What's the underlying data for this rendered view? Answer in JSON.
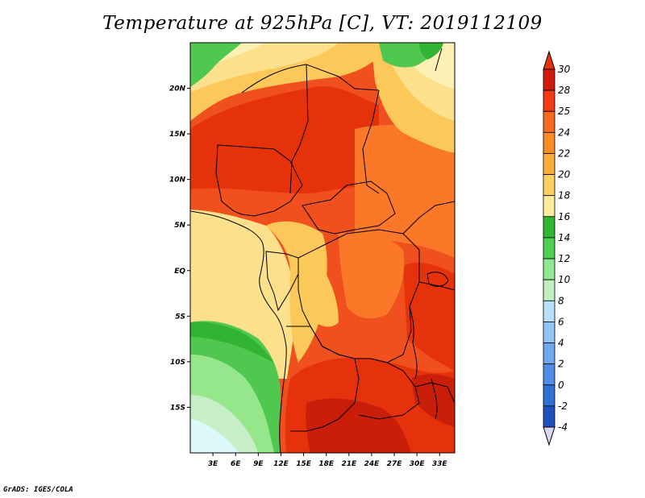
{
  "title": "Temperature at 925hPa [C], VT: 2019112109",
  "credit": "GrADS: IGES/COLA",
  "map": {
    "lat_range": [
      -20,
      25
    ],
    "lon_range": [
      0,
      35
    ],
    "lat_ticks": [
      {
        "value": 20,
        "label": "20N"
      },
      {
        "value": 15,
        "label": "15N"
      },
      {
        "value": 10,
        "label": "10N"
      },
      {
        "value": 5,
        "label": "5N"
      },
      {
        "value": 0,
        "label": "EQ"
      },
      {
        "value": -5,
        "label": "5S"
      },
      {
        "value": -10,
        "label": "10S"
      },
      {
        "value": -15,
        "label": "15S"
      }
    ],
    "lon_ticks": [
      {
        "value": 3,
        "label": "3E"
      },
      {
        "value": 6,
        "label": "6E"
      },
      {
        "value": 9,
        "label": "9E"
      },
      {
        "value": 12,
        "label": "12E"
      },
      {
        "value": 15,
        "label": "15E"
      },
      {
        "value": 18,
        "label": "18E"
      },
      {
        "value": 21,
        "label": "21E"
      },
      {
        "value": 24,
        "label": "24E"
      },
      {
        "value": 27,
        "label": "27E"
      },
      {
        "value": 30,
        "label": "30E"
      },
      {
        "value": 33,
        "label": "33E"
      }
    ]
  },
  "colorbar": {
    "levels": [
      "30",
      "28",
      "25",
      "24",
      "22",
      "20",
      "18",
      "16",
      "14",
      "12",
      "10",
      "8",
      "6",
      "4",
      "2",
      "0",
      "-2",
      "-4"
    ],
    "colors": [
      "#e0e0ff",
      "#a0a0ff",
      "#7070ff",
      "#3e70d6",
      "#5090e0",
      "#70a8f0",
      "#90c0f8",
      "#b0d8ff",
      "#c8f0ff",
      "#c0f0c0",
      "#90e890",
      "#50d050",
      "#30c030",
      "#fff0a0",
      "#ffe080",
      "#ffc850",
      "#ffa030",
      "#ff7020",
      "#f04010",
      "#d02010"
    ]
  },
  "palette": {
    "deep_red": "#c81e0a",
    "red": "#e6320a",
    "red_orange": "#f0501e",
    "orange": "#fa7828",
    "light_orange": "#fca03c",
    "gold": "#fcc85a",
    "pale_yellow": "#fce08c",
    "cream": "#fcf0b4",
    "green_dark": "#32b432",
    "green": "#50c850",
    "green_light": "#96e68c",
    "green_pale": "#c8f0c8",
    "cyan_pale": "#dcf8fa",
    "border": "#000000"
  }
}
